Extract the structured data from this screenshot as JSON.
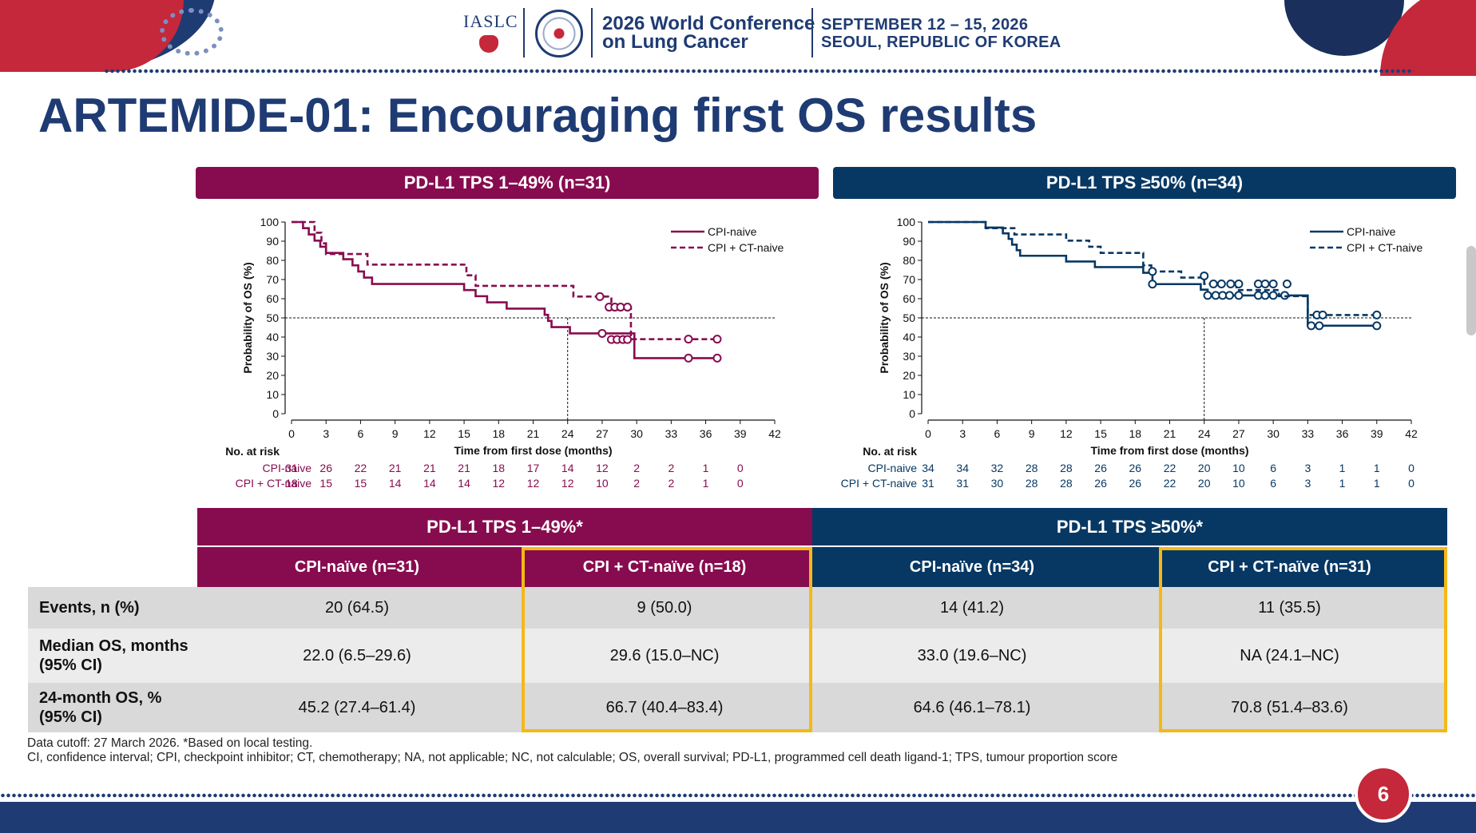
{
  "header": {
    "org": "IASLC",
    "conf_line1": "2026 World Conference",
    "conf_line2": "on Lung Cancer",
    "date_line1": "SEPTEMBER 12 – 15, 2026",
    "date_line2": "SEOUL, REPUBLIC OF KOREA"
  },
  "title": "ARTEMIDE-01: Encouraging first OS results",
  "chart_data": [
    {
      "type": "line",
      "panel": "PD-L1 TPS 1–49% (n=31)",
      "color": "#870c4f",
      "xlabel": "Time from first dose (months)",
      "ylabel": "Probability of OS (%)",
      "xlim": [
        0,
        42
      ],
      "ylim": [
        0,
        100
      ],
      "xticks": [
        0,
        3,
        6,
        9,
        12,
        15,
        18,
        21,
        24,
        27,
        30,
        33,
        36,
        39,
        42
      ],
      "yticks": [
        0,
        10,
        20,
        30,
        40,
        50,
        60,
        70,
        80,
        90,
        100
      ],
      "reference": {
        "y": 50,
        "x": 24
      },
      "legend_position": "top-right",
      "series": [
        {
          "name": "CPI-naive",
          "dash": false,
          "steps": [
            [
              0,
              100
            ],
            [
              1,
              96.8
            ],
            [
              1.5,
              93.5
            ],
            [
              2,
              90.3
            ],
            [
              2.5,
              87.1
            ],
            [
              3,
              83.9
            ],
            [
              4.5,
              80.6
            ],
            [
              5.3,
              77.4
            ],
            [
              5.8,
              74.2
            ],
            [
              6.3,
              71
            ],
            [
              7,
              67.7
            ],
            [
              15,
              64.5
            ],
            [
              16,
              61.3
            ],
            [
              17,
              58.1
            ],
            [
              18.7,
              54.8
            ],
            [
              22,
              51.6
            ],
            [
              22.3,
              48.4
            ],
            [
              22.6,
              45.2
            ],
            [
              24.2,
              41.9
            ],
            [
              29.8,
              29
            ]
          ],
          "end": 37,
          "censors": [
            [
              27,
              41.9
            ],
            [
              27.8,
              38.7
            ],
            [
              28.3,
              38.7
            ],
            [
              28.8,
              38.7
            ],
            [
              29.2,
              38.7
            ],
            [
              34.5,
              29
            ],
            [
              37,
              29
            ]
          ]
        },
        {
          "name": "CPI + CT-naive",
          "dash": true,
          "steps": [
            [
              0,
              100
            ],
            [
              2,
              94.4
            ],
            [
              2.6,
              88.9
            ],
            [
              3,
              83.3
            ],
            [
              6.6,
              77.8
            ],
            [
              15.2,
              72.2
            ],
            [
              16,
              66.7
            ],
            [
              24.5,
              61.1
            ],
            [
              27.8,
              55.6
            ],
            [
              29.5,
              38.9
            ]
          ],
          "end": 37,
          "censors": [
            [
              26.8,
              61.1
            ],
            [
              27.6,
              55.6
            ],
            [
              28.1,
              55.6
            ],
            [
              28.6,
              55.6
            ],
            [
              29.2,
              55.6
            ],
            [
              34.5,
              38.9
            ],
            [
              37,
              38.9
            ]
          ]
        }
      ],
      "at_risk": {
        "title": "No. at risk",
        "times": [
          0,
          3,
          6,
          9,
          12,
          15,
          18,
          21,
          24,
          27,
          30,
          33,
          36,
          39
        ],
        "rows": [
          {
            "label": "CPI-naive",
            "values": [
              "31",
              "26",
              "22",
              "21",
              "21",
              "21",
              "18",
              "17",
              "14",
              "12",
              "2",
              "2",
              "1",
              "0"
            ]
          },
          {
            "label": "CPI + CT-naive",
            "values": [
              "18",
              "15",
              "15",
              "14",
              "14",
              "14",
              "12",
              "12",
              "12",
              "10",
              "2",
              "2",
              "1",
              "0"
            ]
          }
        ]
      }
    },
    {
      "type": "line",
      "panel": "PD-L1 TPS ≥50% (n=34)",
      "color": "#073863",
      "xlabel": "Time from first dose (months)",
      "ylabel": "Probability of OS (%)",
      "xlim": [
        0,
        42
      ],
      "ylim": [
        0,
        100
      ],
      "xticks": [
        0,
        3,
        6,
        9,
        12,
        15,
        18,
        21,
        24,
        27,
        30,
        33,
        36,
        39,
        42
      ],
      "yticks": [
        0,
        10,
        20,
        30,
        40,
        50,
        60,
        70,
        80,
        90,
        100
      ],
      "reference": {
        "y": 50,
        "x": 24
      },
      "legend_position": "top-right",
      "series": [
        {
          "name": "CPI-naive",
          "dash": false,
          "steps": [
            [
              0,
              100
            ],
            [
              5,
              97.1
            ],
            [
              6.5,
              94.1
            ],
            [
              7,
              91.2
            ],
            [
              7.3,
              88.2
            ],
            [
              7.7,
              85.3
            ],
            [
              8,
              82.4
            ],
            [
              12,
              79.4
            ],
            [
              14.5,
              76.5
            ],
            [
              18.7,
              73.5
            ],
            [
              19.5,
              67.6
            ],
            [
              23.7,
              64.7
            ],
            [
              24.3,
              61.7
            ],
            [
              33,
              45.9
            ]
          ],
          "end": 39,
          "censors": [
            [
              19.5,
              67.6
            ],
            [
              24.3,
              61.7
            ],
            [
              25,
              61.7
            ],
            [
              25.6,
              61.7
            ],
            [
              26.2,
              61.7
            ],
            [
              27,
              61.7
            ],
            [
              28.7,
              61.7
            ],
            [
              29.3,
              61.7
            ],
            [
              30,
              61.7
            ],
            [
              31,
              61.7
            ],
            [
              33.3,
              45.9
            ],
            [
              34,
              45.9
            ],
            [
              39,
              45.9
            ]
          ]
        },
        {
          "name": "CPI + CT-naive",
          "dash": true,
          "steps": [
            [
              0,
              100
            ],
            [
              5,
              96.8
            ],
            [
              7.5,
              93.5
            ],
            [
              12,
              90.3
            ],
            [
              14,
              87.1
            ],
            [
              15,
              83.9
            ],
            [
              18.7,
              77.4
            ],
            [
              19.4,
              74.2
            ],
            [
              22,
              71
            ],
            [
              24,
              67.7
            ],
            [
              26.8,
              64.5
            ],
            [
              30.5,
              61.3
            ],
            [
              33,
              51.5
            ]
          ],
          "end": 39,
          "censors": [
            [
              19.5,
              74.2
            ],
            [
              24,
              71.9
            ],
            [
              24.8,
              67.7
            ],
            [
              25.5,
              67.7
            ],
            [
              26.3,
              67.7
            ],
            [
              27,
              67.7
            ],
            [
              28.7,
              67.7
            ],
            [
              29.3,
              67.7
            ],
            [
              30,
              67.7
            ],
            [
              31.2,
              67.7
            ],
            [
              33.8,
              51.5
            ],
            [
              34.3,
              51.5
            ],
            [
              39,
              51.5
            ]
          ]
        }
      ],
      "at_risk": {
        "title": "No. at risk",
        "times": [
          0,
          3,
          6,
          9,
          12,
          15,
          18,
          21,
          24,
          27,
          30,
          33,
          36,
          39,
          42
        ],
        "rows": [
          {
            "label": "CPI-naive",
            "values": [
              "34",
              "34",
              "32",
              "28",
              "28",
              "26",
              "26",
              "22",
              "20",
              "10",
              "6",
              "3",
              "1",
              "1",
              "0"
            ]
          },
          {
            "label": "CPI + CT-naive",
            "values": [
              "31",
              "31",
              "30",
              "28",
              "28",
              "26",
              "26",
              "22",
              "20",
              "10",
              "6",
              "3",
              "1",
              "1",
              "0"
            ]
          }
        ]
      }
    }
  ],
  "table": {
    "group_headers": [
      "PD-L1 TPS 1–49%*",
      "PD-L1 TPS ≥50%*"
    ],
    "col_headers": [
      "CPI-naïve  (n=31)",
      "CPI + CT-naïve (n=18)",
      "CPI-naïve (n=34)",
      "CPI + CT-naïve (n=31)"
    ],
    "rows": [
      {
        "label": "Events, n (%)",
        "values": [
          "20 (64.5)",
          "9 (50.0)",
          "14 (41.2)",
          "11 (35.5)"
        ]
      },
      {
        "label": "Median OS, months (95% CI)",
        "values": [
          "22.0 (6.5–29.6)",
          "29.6 (15.0–NC)",
          "33.0 (19.6–NC)",
          "NA (24.1–NC)"
        ]
      },
      {
        "label": "24-month OS, % (95% CI)",
        "values": [
          "45.2 (27.4–61.4)",
          "66.7 (40.4–83.4)",
          "64.6 (46.1–78.1)",
          "70.8 (51.4–83.6)"
        ]
      }
    ],
    "colors": {
      "magenta": "#870c4f",
      "navy": "#073863",
      "highlight": "#f5b817",
      "row_dark": "#d9d9d9",
      "row_light": "#ececec"
    }
  },
  "footnotes": {
    "line1": "Data cutoff: 27 March 2026. *Based on local testing.",
    "line2": "CI, confidence interval; CPI, checkpoint inhibitor; CT, chemotherapy; NA, not applicable; NC, not calculable; OS, overall survival; PD-L1, programmed cell death ligand-1; TPS, tumour proportion score"
  },
  "page_number": "6"
}
